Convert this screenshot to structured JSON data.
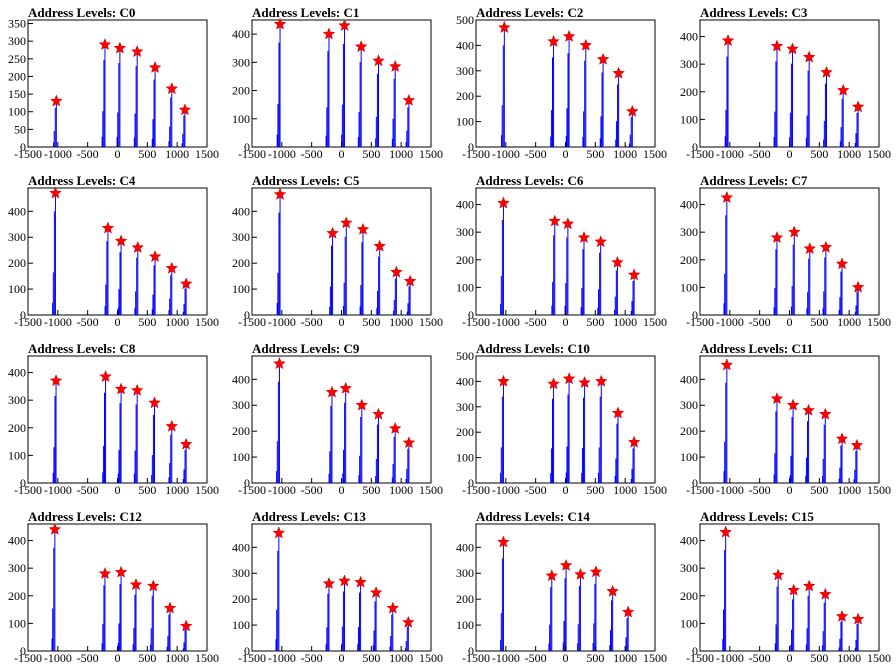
{
  "figure": {
    "series_color": "#0000ff",
    "marker_color": "#ff0000",
    "x_ticks": [
      -1500,
      -1000,
      -500,
      0,
      500,
      1000,
      1500
    ]
  },
  "chart_data": [
    {
      "title": "Address Levels: C0",
      "type": "bar",
      "xlim": [
        -1500,
        1500
      ],
      "ylim": [
        0,
        360
      ],
      "y_ticks": [
        0,
        50,
        100,
        150,
        200,
        250,
        300,
        350
      ],
      "peaks_x": [
        -1025,
        -210,
        40,
        330,
        630,
        910,
        1130
      ],
      "peaks_y": [
        130,
        290,
        280,
        270,
        225,
        165,
        105
      ]
    },
    {
      "title": "Address Levels: C1",
      "type": "bar",
      "xlim": [
        -1500,
        1500
      ],
      "ylim": [
        0,
        450
      ],
      "y_ticks": [
        0,
        100,
        200,
        300,
        400
      ],
      "peaks_x": [
        -1030,
        -210,
        50,
        330,
        620,
        900,
        1130
      ],
      "peaks_y": [
        435,
        400,
        430,
        355,
        305,
        285,
        165
      ]
    },
    {
      "title": "Address Levels: C2",
      "type": "bar",
      "xlim": [
        -1500,
        1500
      ],
      "ylim": [
        0,
        500
      ],
      "y_ticks": [
        0,
        100,
        200,
        300,
        400,
        500
      ],
      "peaks_x": [
        -1025,
        -200,
        60,
        340,
        630,
        890,
        1120
      ],
      "peaks_y": [
        470,
        415,
        435,
        400,
        345,
        290,
        140
      ]
    },
    {
      "title": "Address Levels: C3",
      "type": "bar",
      "xlim": [
        -1500,
        1500
      ],
      "ylim": [
        0,
        460
      ],
      "y_ticks": [
        0,
        100,
        200,
        300,
        400
      ],
      "peaks_x": [
        -1030,
        -210,
        50,
        330,
        620,
        900,
        1150
      ],
      "peaks_y": [
        385,
        365,
        355,
        325,
        270,
        205,
        145
      ]
    },
    {
      "title": "Address Levels: C4",
      "type": "bar",
      "xlim": [
        -1500,
        1500
      ],
      "ylim": [
        0,
        490
      ],
      "y_ticks": [
        0,
        100,
        200,
        300,
        400
      ],
      "peaks_x": [
        -1040,
        -160,
        60,
        340,
        630,
        910,
        1150
      ],
      "peaks_y": [
        470,
        335,
        285,
        260,
        225,
        180,
        120
      ]
    },
    {
      "title": "Address Levels: C5",
      "type": "bar",
      "xlim": [
        -1500,
        1500
      ],
      "ylim": [
        0,
        490
      ],
      "y_ticks": [
        0,
        100,
        200,
        300,
        400
      ],
      "peaks_x": [
        -1030,
        -150,
        80,
        360,
        640,
        920,
        1150
      ],
      "peaks_y": [
        465,
        315,
        355,
        330,
        265,
        165,
        130
      ]
    },
    {
      "title": "Address Levels: C6",
      "type": "bar",
      "xlim": [
        -1500,
        1500
      ],
      "ylim": [
        0,
        460
      ],
      "y_ticks": [
        0,
        100,
        200,
        300,
        400
      ],
      "peaks_x": [
        -1040,
        -180,
        40,
        310,
        590,
        870,
        1150
      ],
      "peaks_y": [
        405,
        340,
        330,
        280,
        265,
        190,
        145
      ]
    },
    {
      "title": "Address Levels: C7",
      "type": "bar",
      "xlim": [
        -1500,
        1500
      ],
      "ylim": [
        0,
        460
      ],
      "y_ticks": [
        0,
        100,
        200,
        300,
        400
      ],
      "peaks_x": [
        -1050,
        -210,
        80,
        340,
        610,
        880,
        1150
      ],
      "peaks_y": [
        425,
        280,
        300,
        240,
        245,
        185,
        100
      ]
    },
    {
      "title": "Address Levels: C8",
      "type": "bar",
      "xlim": [
        -1500,
        1500
      ],
      "ylim": [
        0,
        460
      ],
      "y_ticks": [
        0,
        100,
        200,
        300,
        400
      ],
      "peaks_x": [
        -1030,
        -200,
        60,
        330,
        620,
        910,
        1150
      ],
      "peaks_y": [
        370,
        385,
        340,
        335,
        290,
        205,
        140
      ]
    },
    {
      "title": "Address Levels: C9",
      "type": "bar",
      "xlim": [
        -1500,
        1500
      ],
      "ylim": [
        0,
        490
      ],
      "y_ticks": [
        0,
        100,
        200,
        300,
        400
      ],
      "peaks_x": [
        -1040,
        -160,
        70,
        340,
        620,
        900,
        1130
      ],
      "peaks_y": [
        460,
        350,
        365,
        300,
        265,
        210,
        155
      ]
    },
    {
      "title": "Address Levels: C10",
      "type": "bar",
      "xlim": [
        -1500,
        1500
      ],
      "ylim": [
        0,
        500
      ],
      "y_ticks": [
        0,
        100,
        200,
        300,
        400,
        500
      ],
      "peaks_x": [
        -1040,
        -200,
        60,
        320,
        600,
        880,
        1150
      ],
      "peaks_y": [
        400,
        390,
        410,
        395,
        400,
        275,
        160
      ]
    },
    {
      "title": "Address Levels: C11",
      "type": "bar",
      "xlim": [
        -1500,
        1500
      ],
      "ylim": [
        0,
        490
      ],
      "y_ticks": [
        0,
        100,
        200,
        300,
        400
      ],
      "peaks_x": [
        -1050,
        -210,
        60,
        320,
        600,
        880,
        1130
      ],
      "peaks_y": [
        455,
        325,
        300,
        280,
        265,
        170,
        145
      ]
    },
    {
      "title": "Address Levels: C12",
      "type": "bar",
      "xlim": [
        -1500,
        1500
      ],
      "ylim": [
        0,
        460
      ],
      "y_ticks": [
        0,
        100,
        200,
        300,
        400
      ],
      "peaks_x": [
        -1050,
        -210,
        60,
        310,
        600,
        880,
        1150
      ],
      "peaks_y": [
        440,
        280,
        285,
        240,
        235,
        155,
        90
      ]
    },
    {
      "title": "Address Levels: C13",
      "type": "bar",
      "xlim": [
        -1500,
        1500
      ],
      "ylim": [
        0,
        490
      ],
      "y_ticks": [
        0,
        100,
        200,
        300,
        400
      ],
      "peaks_x": [
        -1050,
        -210,
        50,
        320,
        580,
        860,
        1120
      ],
      "peaks_y": [
        455,
        260,
        270,
        265,
        225,
        165,
        110
      ]
    },
    {
      "title": "Address Levels: C14",
      "type": "bar",
      "xlim": [
        -1500,
        1500
      ],
      "ylim": [
        0,
        490
      ],
      "y_ticks": [
        0,
        100,
        200,
        300,
        400
      ],
      "peaks_x": [
        -1040,
        -230,
        10,
        250,
        510,
        790,
        1050
      ],
      "peaks_y": [
        420,
        290,
        330,
        295,
        305,
        230,
        150
      ]
    },
    {
      "title": "Address Levels: C15",
      "type": "bar",
      "xlim": [
        -1500,
        1500
      ],
      "ylim": [
        0,
        460
      ],
      "y_ticks": [
        0,
        100,
        200,
        300,
        400
      ],
      "peaks_x": [
        -1070,
        -190,
        70,
        330,
        600,
        880,
        1150
      ],
      "peaks_y": [
        430,
        275,
        220,
        235,
        205,
        125,
        115
      ]
    }
  ]
}
